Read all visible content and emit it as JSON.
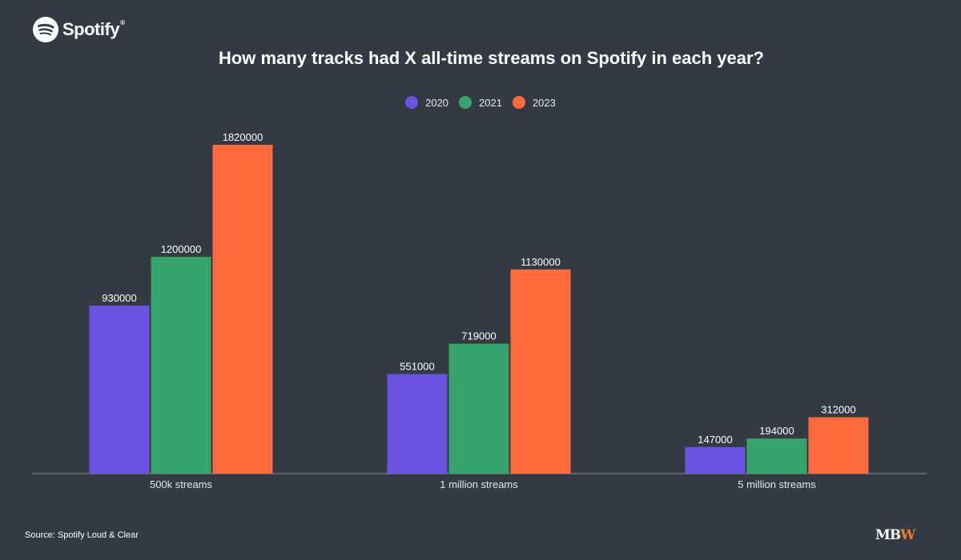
{
  "brand": {
    "name": "Spotify",
    "mark": "®",
    "logo_icon": "spotify-logo-icon"
  },
  "chart_data": {
    "type": "bar",
    "title": "How many tracks had X all-time streams on Spotify in each year?",
    "categories": [
      "500k streams",
      "1 million streams",
      "5 million streams"
    ],
    "series": [
      {
        "name": "2020",
        "color": "#6c52e0",
        "values": [
          930000,
          551000,
          147000
        ]
      },
      {
        "name": "2021",
        "color": "#38a46d",
        "values": [
          1200000,
          719000,
          194000
        ]
      },
      {
        "name": "2023",
        "color": "#ff6a3c",
        "values": [
          1820000,
          1130000,
          312000
        ]
      }
    ],
    "ylim": [
      0,
      1820000
    ],
    "grid": false,
    "legend_position": "top-center",
    "data_labels": true
  },
  "source": "Source: Spotify Loud & Clear",
  "publisher_logo": {
    "part1": "MB",
    "part2": "W",
    "accent": "#f47b2a"
  }
}
